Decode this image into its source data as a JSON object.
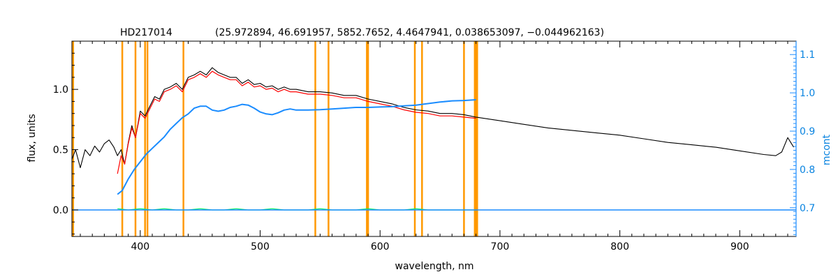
{
  "chart_data": {
    "type": "line",
    "title": "HD217014",
    "subtitle": "(25.972894, 46.691957, 5852.7652, 4.4647941, 0.038653097, −0.044962163)",
    "xlabel": "wavelength, nm",
    "ylabel": "flux, units",
    "ylabel_right": "mcont",
    "xlim": [
      343,
      947
    ],
    "ylim": [
      -0.22,
      1.4
    ],
    "ylim_right": [
      0.625,
      1.135
    ],
    "x_ticks": [
      "400",
      "500",
      "600",
      "700",
      "800",
      "900"
    ],
    "y_ticks": [
      "0.0",
      "0.5",
      "1.0"
    ],
    "y_ticks_right": [
      "0.7",
      "0.8",
      "0.9",
      "1.0",
      "1.1"
    ],
    "grid": false,
    "colors": {
      "observed": "#000000",
      "model": "#ff0000",
      "residual": "#00ee66",
      "mcont": "#1a8cff",
      "mask": "#ff9900",
      "right_axis": "#1a8cff",
      "telluric": "#ffff00"
    },
    "masked_wavelengths": [
      344,
      385,
      396,
      404,
      406,
      436,
      546,
      557,
      589,
      590,
      629,
      635,
      670,
      679,
      680,
      681
    ],
    "series": [
      {
        "key": "observed",
        "axis": "left",
        "x": [
          343,
          346,
          350,
          354,
          358,
          362,
          366,
          370,
          374,
          378,
          381,
          384,
          387,
          390,
          393,
          396,
          400,
          404,
          408,
          412,
          416,
          420,
          425,
          430,
          435,
          440,
          445,
          450,
          455,
          460,
          465,
          470,
          475,
          480,
          485,
          490,
          495,
          500,
          505,
          510,
          515,
          520,
          525,
          530,
          540,
          550,
          560,
          570,
          580,
          590,
          600,
          610,
          620,
          630,
          640,
          650,
          660,
          670,
          680,
          700,
          720,
          740,
          760,
          780,
          800,
          820,
          840,
          860,
          880,
          900,
          920,
          930,
          935,
          940,
          945
        ],
        "y": [
          0.42,
          0.5,
          0.35,
          0.5,
          0.45,
          0.53,
          0.48,
          0.55,
          0.58,
          0.52,
          0.45,
          0.5,
          0.38,
          0.56,
          0.7,
          0.6,
          0.82,
          0.78,
          0.86,
          0.94,
          0.92,
          1.0,
          1.02,
          1.05,
          1.0,
          1.1,
          1.12,
          1.15,
          1.12,
          1.18,
          1.14,
          1.12,
          1.1,
          1.1,
          1.05,
          1.08,
          1.04,
          1.05,
          1.02,
          1.03,
          1.0,
          1.02,
          1.0,
          1.0,
          0.98,
          0.98,
          0.97,
          0.95,
          0.95,
          0.92,
          0.9,
          0.88,
          0.85,
          0.83,
          0.82,
          0.8,
          0.8,
          0.79,
          0.77,
          0.74,
          0.71,
          0.68,
          0.66,
          0.64,
          0.62,
          0.59,
          0.56,
          0.54,
          0.52,
          0.49,
          0.46,
          0.45,
          0.48,
          0.6,
          0.52
        ]
      },
      {
        "key": "model",
        "axis": "left",
        "x": [
          381,
          384,
          387,
          390,
          393,
          396,
          400,
          404,
          408,
          412,
          416,
          420,
          425,
          430,
          435,
          440,
          445,
          450,
          455,
          460,
          465,
          470,
          475,
          480,
          485,
          490,
          495,
          500,
          505,
          510,
          515,
          520,
          525,
          530,
          540,
          550,
          560,
          570,
          580,
          590,
          600,
          610,
          620,
          630,
          640,
          650,
          660,
          670,
          680
        ],
        "y": [
          0.3,
          0.45,
          0.38,
          0.55,
          0.68,
          0.6,
          0.8,
          0.76,
          0.84,
          0.92,
          0.9,
          0.98,
          1.0,
          1.03,
          0.98,
          1.08,
          1.1,
          1.13,
          1.1,
          1.15,
          1.12,
          1.1,
          1.08,
          1.08,
          1.03,
          1.06,
          1.02,
          1.03,
          1.0,
          1.01,
          0.98,
          1.0,
          0.98,
          0.98,
          0.96,
          0.96,
          0.95,
          0.93,
          0.93,
          0.9,
          0.88,
          0.86,
          0.83,
          0.81,
          0.8,
          0.78,
          0.78,
          0.77,
          0.76
        ]
      },
      {
        "key": "residual",
        "axis": "left",
        "x": [
          381,
          390,
          400,
          410,
          420,
          430,
          440,
          450,
          460,
          470,
          480,
          490,
          500,
          510,
          520,
          530,
          540,
          550,
          560,
          570,
          580,
          590,
          600,
          610,
          620,
          630,
          640,
          650,
          660,
          670,
          680
        ],
        "y": [
          0.01,
          0.0,
          0.01,
          0.0,
          0.01,
          0.0,
          0.0,
          0.01,
          0.0,
          0.0,
          0.01,
          0.0,
          0.0,
          0.01,
          0.0,
          0.0,
          0.0,
          0.01,
          0.0,
          0.0,
          0.0,
          0.01,
          0.0,
          0.0,
          0.0,
          0.01,
          0.0,
          0.0,
          0.0,
          0.0,
          0.0
        ]
      },
      {
        "key": "residual_zero",
        "axis": "left",
        "x": [
          343,
          947
        ],
        "y": [
          0.0,
          0.0
        ]
      },
      {
        "key": "mcont",
        "axis": "right",
        "x": [
          381,
          385,
          390,
          395,
          400,
          405,
          410,
          415,
          420,
          425,
          430,
          435,
          440,
          445,
          450,
          455,
          460,
          465,
          470,
          475,
          480,
          485,
          490,
          495,
          500,
          505,
          510,
          515,
          520,
          525,
          530,
          540,
          550,
          560,
          570,
          580,
          590,
          600,
          610,
          620,
          630,
          640,
          650,
          660,
          670,
          680
        ],
        "y": [
          0.735,
          0.745,
          0.775,
          0.8,
          0.82,
          0.84,
          0.855,
          0.87,
          0.885,
          0.905,
          0.92,
          0.935,
          0.945,
          0.96,
          0.965,
          0.965,
          0.955,
          0.952,
          0.955,
          0.962,
          0.965,
          0.97,
          0.968,
          0.96,
          0.95,
          0.945,
          0.943,
          0.948,
          0.955,
          0.958,
          0.955,
          0.955,
          0.956,
          0.958,
          0.96,
          0.962,
          0.962,
          0.963,
          0.964,
          0.966,
          0.968,
          0.972,
          0.976,
          0.979,
          0.98,
          0.982
        ]
      }
    ]
  }
}
